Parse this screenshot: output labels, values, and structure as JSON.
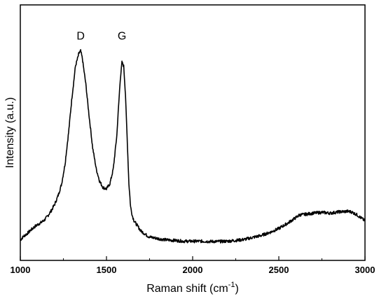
{
  "chart_data": {
    "type": "line",
    "xlabel": "Raman shift (cm",
    "xlabel_sup": "-1",
    "xlabel_close": ")",
    "ylabel": "Intensity (a.u.)",
    "xlim": [
      1000,
      3000
    ],
    "ylim": [
      0,
      1
    ],
    "x_ticks": [
      1000,
      1500,
      2000,
      2500,
      3000
    ],
    "x_tick_labels": [
      "1000",
      "1500",
      "2000",
      "2500",
      "3000"
    ],
    "grid": false,
    "legend": "none",
    "annotations": [
      {
        "text": "D",
        "x": 1350,
        "y": 0.865
      },
      {
        "text": "G",
        "x": 1590,
        "y": 0.865
      }
    ],
    "series": [
      {
        "x": [
          1000,
          1020,
          1040,
          1060,
          1080,
          1100,
          1120,
          1140,
          1160,
          1180,
          1200,
          1220,
          1240,
          1260,
          1280,
          1300,
          1320,
          1340,
          1350,
          1360,
          1380,
          1400,
          1420,
          1440,
          1460,
          1480,
          1500,
          1520,
          1540,
          1560,
          1580,
          1590,
          1600,
          1610,
          1620,
          1630,
          1640,
          1650,
          1660,
          1680,
          1700,
          1720,
          1740,
          1760,
          1780,
          1800,
          1850,
          1900,
          1950,
          2000,
          2050,
          2100,
          2150,
          2200,
          2250,
          2300,
          2350,
          2400,
          2450,
          2500,
          2550,
          2600,
          2620,
          2650,
          2700,
          2750,
          2800,
          2850,
          2900,
          2920,
          2950,
          2980,
          3000
        ],
        "y": [
          0.08,
          0.095,
          0.105,
          0.118,
          0.13,
          0.14,
          0.148,
          0.158,
          0.175,
          0.195,
          0.22,
          0.255,
          0.3,
          0.38,
          0.5,
          0.64,
          0.76,
          0.81,
          0.82,
          0.79,
          0.69,
          0.56,
          0.44,
          0.36,
          0.31,
          0.285,
          0.28,
          0.3,
          0.36,
          0.49,
          0.71,
          0.775,
          0.76,
          0.65,
          0.48,
          0.3,
          0.21,
          0.175,
          0.155,
          0.135,
          0.115,
          0.105,
          0.095,
          0.09,
          0.088,
          0.085,
          0.08,
          0.078,
          0.075,
          0.075,
          0.075,
          0.074,
          0.074,
          0.075,
          0.078,
          0.082,
          0.09,
          0.098,
          0.11,
          0.125,
          0.145,
          0.168,
          0.178,
          0.18,
          0.185,
          0.188,
          0.185,
          0.19,
          0.192,
          0.19,
          0.18,
          0.165,
          0.155
        ]
      }
    ]
  }
}
